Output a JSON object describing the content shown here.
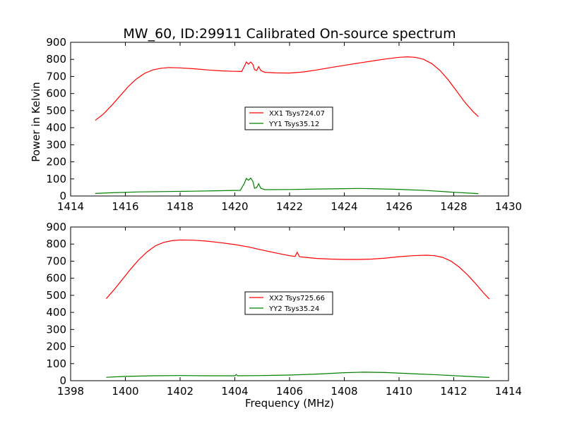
{
  "figure": {
    "title": "MW_60, ID:29911 Calibrated On-source spectrum",
    "ylabel": "Power in Kelvin",
    "xlabel": "Frequency (MHz)"
  },
  "chart_data": [
    {
      "type": "line",
      "xlim": [
        1414,
        1430
      ],
      "ylim": [
        0,
        900
      ],
      "xticks": [
        1414,
        1416,
        1418,
        1420,
        1422,
        1424,
        1426,
        1428,
        1430
      ],
      "yticks": [
        0,
        100,
        200,
        300,
        400,
        500,
        600,
        700,
        800,
        900
      ],
      "grid": false,
      "legend_position": "center",
      "series": [
        {
          "name": "XX1 Tsys724.07",
          "color": "#ff0000",
          "points": [
            [
              1414.9,
              443
            ],
            [
              1415.2,
              480
            ],
            [
              1415.5,
              530
            ],
            [
              1415.8,
              585
            ],
            [
              1416.1,
              640
            ],
            [
              1416.4,
              685
            ],
            [
              1416.7,
              718
            ],
            [
              1417.0,
              738
            ],
            [
              1417.3,
              748
            ],
            [
              1417.6,
              752
            ],
            [
              1418.0,
              750
            ],
            [
              1418.5,
              745
            ],
            [
              1419.0,
              738
            ],
            [
              1419.5,
              733
            ],
            [
              1420.0,
              730
            ],
            [
              1420.25,
              729
            ],
            [
              1420.35,
              760
            ],
            [
              1420.42,
              785
            ],
            [
              1420.5,
              772
            ],
            [
              1420.58,
              785
            ],
            [
              1420.66,
              770
            ],
            [
              1420.72,
              740
            ],
            [
              1420.8,
              735
            ],
            [
              1420.87,
              758
            ],
            [
              1420.95,
              735
            ],
            [
              1421.1,
              724
            ],
            [
              1421.5,
              721
            ],
            [
              1422.0,
              720
            ],
            [
              1422.5,
              726
            ],
            [
              1423.0,
              738
            ],
            [
              1423.5,
              752
            ],
            [
              1424.0,
              765
            ],
            [
              1424.5,
              778
            ],
            [
              1425.0,
              790
            ],
            [
              1425.5,
              802
            ],
            [
              1426.0,
              812
            ],
            [
              1426.3,
              815
            ],
            [
              1426.6,
              812
            ],
            [
              1426.9,
              800
            ],
            [
              1427.2,
              775
            ],
            [
              1427.5,
              735
            ],
            [
              1427.8,
              680
            ],
            [
              1428.1,
              615
            ],
            [
              1428.4,
              550
            ],
            [
              1428.7,
              495
            ],
            [
              1428.9,
              465
            ]
          ]
        },
        {
          "name": "YY1 Tsys35.12",
          "color": "#008000",
          "points": [
            [
              1414.9,
              15
            ],
            [
              1415.5,
              19
            ],
            [
              1416.5,
              24
            ],
            [
              1417.5,
              26
            ],
            [
              1418.5,
              28
            ],
            [
              1419.5,
              31
            ],
            [
              1420.2,
              33
            ],
            [
              1420.35,
              75
            ],
            [
              1420.42,
              103
            ],
            [
              1420.5,
              92
            ],
            [
              1420.58,
              105
            ],
            [
              1420.66,
              85
            ],
            [
              1420.72,
              45
            ],
            [
              1420.8,
              50
            ],
            [
              1420.87,
              72
            ],
            [
              1420.95,
              45
            ],
            [
              1421.1,
              37
            ],
            [
              1422.0,
              38
            ],
            [
              1423.0,
              41
            ],
            [
              1424.0,
              43
            ],
            [
              1424.5,
              44
            ],
            [
              1425.0,
              43
            ],
            [
              1426.0,
              39
            ],
            [
              1427.0,
              32
            ],
            [
              1428.0,
              22
            ],
            [
              1428.9,
              14
            ]
          ]
        }
      ]
    },
    {
      "type": "line",
      "xlim": [
        1398,
        1414
      ],
      "ylim": [
        0,
        900
      ],
      "xticks": [
        1398,
        1400,
        1402,
        1404,
        1406,
        1408,
        1410,
        1412,
        1414
      ],
      "yticks": [
        0,
        100,
        200,
        300,
        400,
        500,
        600,
        700,
        800,
        900
      ],
      "grid": false,
      "legend_position": "center",
      "series": [
        {
          "name": "XX2 Tsys725.66",
          "color": "#ff0000",
          "points": [
            [
              1399.3,
              480
            ],
            [
              1399.6,
              535
            ],
            [
              1399.9,
              595
            ],
            [
              1400.2,
              655
            ],
            [
              1400.5,
              710
            ],
            [
              1400.8,
              755
            ],
            [
              1401.1,
              790
            ],
            [
              1401.4,
              810
            ],
            [
              1401.7,
              820
            ],
            [
              1402.0,
              824
            ],
            [
              1402.5,
              823
            ],
            [
              1403.0,
              817
            ],
            [
              1403.5,
              808
            ],
            [
              1404.0,
              797
            ],
            [
              1404.5,
              783
            ],
            [
              1405.0,
              765
            ],
            [
              1405.5,
              748
            ],
            [
              1406.0,
              732
            ],
            [
              1406.2,
              728
            ],
            [
              1406.28,
              752
            ],
            [
              1406.36,
              726
            ],
            [
              1406.6,
              722
            ],
            [
              1407.0,
              716
            ],
            [
              1407.5,
              712
            ],
            [
              1408.0,
              710
            ],
            [
              1408.5,
              710
            ],
            [
              1409.0,
              712
            ],
            [
              1409.5,
              718
            ],
            [
              1410.0,
              726
            ],
            [
              1410.5,
              732
            ],
            [
              1411.0,
              735
            ],
            [
              1411.3,
              732
            ],
            [
              1411.6,
              722
            ],
            [
              1411.9,
              700
            ],
            [
              1412.2,
              665
            ],
            [
              1412.5,
              620
            ],
            [
              1412.8,
              568
            ],
            [
              1413.1,
              512
            ],
            [
              1413.3,
              478
            ]
          ]
        },
        {
          "name": "YY2 Tsys35.24",
          "color": "#008000",
          "points": [
            [
              1399.3,
              20
            ],
            [
              1400.0,
              25
            ],
            [
              1401.0,
              29
            ],
            [
              1402.0,
              30
            ],
            [
              1403.0,
              29
            ],
            [
              1404.0,
              29
            ],
            [
              1404.05,
              36
            ],
            [
              1404.1,
              29
            ],
            [
              1405.0,
              30
            ],
            [
              1406.0,
              33
            ],
            [
              1407.0,
              39
            ],
            [
              1408.0,
              47
            ],
            [
              1408.7,
              50
            ],
            [
              1409.5,
              48
            ],
            [
              1410.5,
              41
            ],
            [
              1411.5,
              34
            ],
            [
              1412.5,
              25
            ],
            [
              1413.3,
              19
            ]
          ]
        }
      ]
    }
  ]
}
